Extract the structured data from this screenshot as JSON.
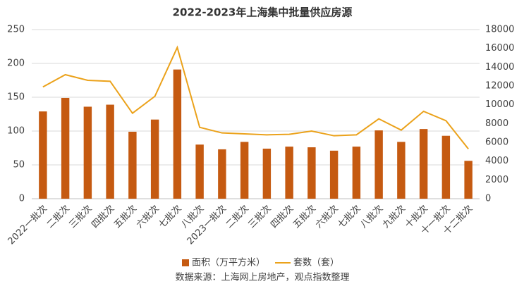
{
  "chart_data": {
    "type": "bar-line",
    "title": "2022-2023年上海集中批量供应房源",
    "source": "数据来源：上海网上房地产，观点指数整理",
    "categories": [
      "2022一批次",
      "二批次",
      "三批次",
      "四批次",
      "五批次",
      "六批次",
      "七批次",
      "八批次",
      "2023一批次",
      "二批次",
      "三批次",
      "四批次",
      "五批次",
      "六批次",
      "七批次",
      "八批次",
      "九批次",
      "十批次",
      "十一批次",
      "十二批次"
    ],
    "series": [
      {
        "name": "面积（万平方米）",
        "type": "bar",
        "color": "#c55a11",
        "values": [
          129,
          149,
          136,
          139,
          99,
          117,
          191,
          80,
          73,
          84,
          74,
          77,
          76,
          71,
          77,
          101,
          84,
          103,
          93,
          56
        ]
      },
      {
        "name": "套数（套）",
        "type": "line",
        "axis": "y2",
        "color": "#eba21b",
        "values": [
          11900,
          13200,
          12600,
          12500,
          9100,
          10900,
          16100,
          7600,
          7000,
          6900,
          6800,
          6850,
          7200,
          6700,
          6800,
          8500,
          7300,
          9300,
          8300,
          5300
        ]
      }
    ],
    "ylim": [
      0,
      250
    ],
    "yticks": [
      0,
      50,
      100,
      150,
      200,
      250
    ],
    "y2lim": [
      0,
      18000
    ],
    "y2ticks": [
      0,
      2000,
      4000,
      6000,
      8000,
      10000,
      12000,
      14000,
      16000,
      18000
    ],
    "grid": true,
    "legend": "bottom"
  }
}
